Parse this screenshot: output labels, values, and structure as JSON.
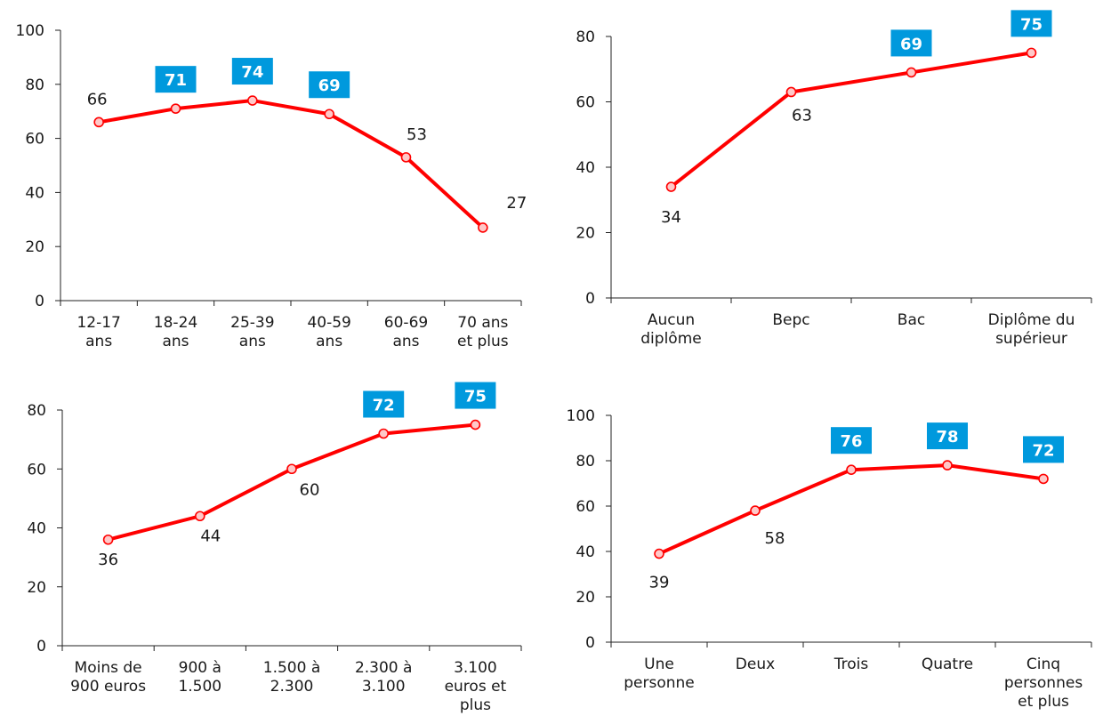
{
  "chart_data": [
    {
      "type": "line",
      "categories": [
        [
          "12-17",
          "ans"
        ],
        [
          "18-24",
          "ans"
        ],
        [
          "25-39",
          "ans"
        ],
        [
          "40-59",
          "ans"
        ],
        [
          "60-69",
          "ans"
        ],
        [
          "70 ans",
          "et plus"
        ]
      ],
      "values": [
        66,
        71,
        74,
        69,
        53,
        27
      ],
      "highlighted": [
        false,
        true,
        true,
        true,
        false,
        false
      ],
      "value_labels": [
        "66",
        "71",
        "74",
        "69",
        "53",
        "27"
      ],
      "ylim": [
        0,
        100
      ],
      "yticks": [
        "0",
        "20",
        "40",
        "60",
        "80",
        "100"
      ],
      "title": "",
      "xlabel": "",
      "ylabel": "",
      "grid": false,
      "legend": "none"
    },
    {
      "type": "line",
      "categories": [
        [
          "Aucun",
          "diplôme"
        ],
        [
          "Bepc"
        ],
        [
          "Bac"
        ],
        [
          "Diplôme du",
          "supérieur"
        ]
      ],
      "values": [
        34,
        63,
        69,
        75
      ],
      "highlighted": [
        false,
        false,
        true,
        true
      ],
      "value_labels": [
        "34",
        "63",
        "69",
        "75"
      ],
      "ylim": [
        0,
        80
      ],
      "yticks": [
        "0",
        "20",
        "40",
        "60",
        "80"
      ],
      "title": "",
      "xlabel": "",
      "ylabel": "",
      "grid": false,
      "legend": "none"
    },
    {
      "type": "line",
      "categories": [
        [
          "Moins de",
          "900 euros"
        ],
        [
          "900 à",
          "1.500"
        ],
        [
          "1.500 à",
          "2.300"
        ],
        [
          "2.300 à",
          "3.100"
        ],
        [
          "3.100",
          "euros et",
          "plus"
        ]
      ],
      "values": [
        36,
        44,
        60,
        72,
        75
      ],
      "highlighted": [
        false,
        false,
        false,
        true,
        true
      ],
      "value_labels": [
        "36",
        "44",
        "60",
        "72",
        "75"
      ],
      "ylim": [
        0,
        80
      ],
      "yticks": [
        "0",
        "20",
        "40",
        "60",
        "80"
      ],
      "title": "",
      "xlabel": "",
      "ylabel": "",
      "grid": false,
      "legend": "none"
    },
    {
      "type": "line",
      "categories": [
        [
          "Une",
          "personne"
        ],
        [
          "Deux"
        ],
        [
          "Trois"
        ],
        [
          "Quatre"
        ],
        [
          "Cinq",
          "personnes",
          "et plus"
        ]
      ],
      "values": [
        39,
        58,
        76,
        78,
        72
      ],
      "highlighted": [
        false,
        false,
        true,
        true,
        true
      ],
      "value_labels": [
        "39",
        "58",
        "76",
        "78",
        "72"
      ],
      "ylim": [
        0,
        100
      ],
      "yticks": [
        "0",
        "20",
        "40",
        "60",
        "80",
        "100"
      ],
      "title": "",
      "xlabel": "",
      "ylabel": "",
      "grid": false,
      "legend": "none"
    }
  ],
  "colors": {
    "line": "#ff0000",
    "marker_fill": "#ffc8c8",
    "highlight_box": "#0099dd",
    "highlight_text": "#ffffff",
    "axis": "#222222",
    "text": "#1a1a1a"
  }
}
